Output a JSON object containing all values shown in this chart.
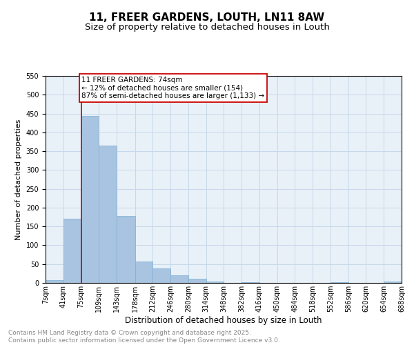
{
  "title": "11, FREER GARDENS, LOUTH, LN11 8AW",
  "subtitle": "Size of property relative to detached houses in Louth",
  "xlabel": "Distribution of detached houses by size in Louth",
  "ylabel": "Number of detached properties",
  "bar_color": "#a8c4e0",
  "bar_edge_color": "#7bafd4",
  "vline_color": "#cc0000",
  "vline_x": 75,
  "annotation_text": "11 FREER GARDENS: 74sqm\n← 12% of detached houses are smaller (154)\n87% of semi-detached houses are larger (1,133) →",
  "annotation_box_color": "#ffffff",
  "annotation_border_color": "#cc0000",
  "bin_edges": [
    7,
    41,
    75,
    109,
    143,
    178,
    212,
    246,
    280,
    314,
    348,
    382,
    416,
    450,
    484,
    518,
    552,
    586,
    620,
    654,
    688
  ],
  "bar_heights": [
    8,
    170,
    443,
    364,
    178,
    56,
    39,
    20,
    11,
    3,
    0,
    1,
    0,
    0,
    0,
    0,
    2,
    0,
    0,
    3
  ],
  "ylim": [
    0,
    550
  ],
  "yticks": [
    0,
    50,
    100,
    150,
    200,
    250,
    300,
    350,
    400,
    450,
    500,
    550
  ],
  "grid_color": "#c8d8ea",
  "background_color": "#e8f0f8",
  "footnote1": "Contains HM Land Registry data © Crown copyright and database right 2025.",
  "footnote2": "Contains public sector information licensed under the Open Government Licence v3.0.",
  "footnote_color": "#888888",
  "title_fontsize": 11,
  "subtitle_fontsize": 9.5,
  "xlabel_fontsize": 8.5,
  "ylabel_fontsize": 8,
  "tick_fontsize": 7,
  "annotation_fontsize": 7.5,
  "footnote_fontsize": 6.5
}
